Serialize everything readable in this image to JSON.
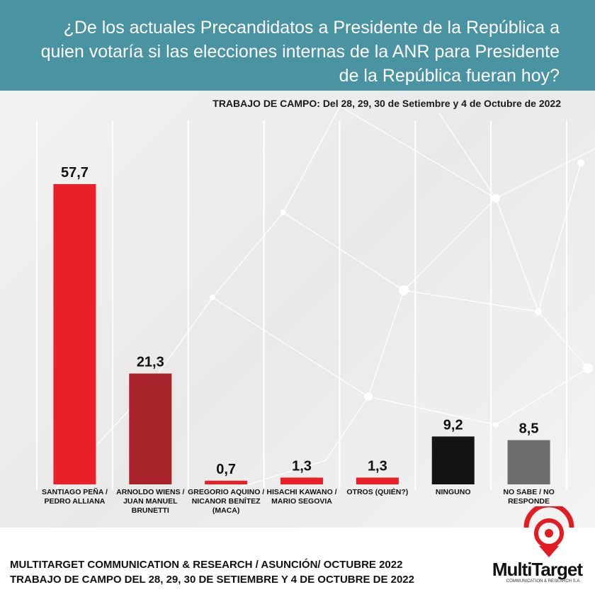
{
  "header": {
    "title": "¿De los actuales Precandidatos a Presidente de la República a quien votaría si las elecciones internas de la ANR para Presidente de la República fueran hoy?",
    "fieldwork": "TRABAJO DE CAMPO: Del 28, 29, 30  de Setiembre y 4  de Octubre  de  2022"
  },
  "colors": {
    "header_bg": "#4a93a2",
    "bars": [
      "#ea2029",
      "#a8222a",
      "#ea2029",
      "#ea2029",
      "#ea2029",
      "#141414",
      "#6d6d6d"
    ]
  },
  "chart_data": {
    "type": "bar",
    "title": "¿De los actuales Precandidatos a Presidente de la República a quien votaría si las elecciones internas de la ANR para Presidente de la República fueran hoy?",
    "xlabel": "",
    "ylabel": "",
    "ylim": [
      0,
      60
    ],
    "grid": false,
    "categories": [
      [
        "SANTIAGO PEÑA /",
        "PEDRO ALLIANA"
      ],
      [
        "ARNOLDO WIENS /",
        "JUAN MANUEL",
        "BRUNETTI"
      ],
      [
        "GREGORIO AQUINO /",
        "NICANOR BENÍTEZ",
        "(MACA)"
      ],
      [
        "HISACHI KAWANO /",
        "MARIO SEGOVIA"
      ],
      [
        "OTROS (QUIÉN?)"
      ],
      [
        "NINGUNO"
      ],
      [
        "NO SABE / NO",
        "RESPONDE"
      ]
    ],
    "values": [
      57.7,
      21.3,
      0.7,
      1.3,
      1.3,
      9.2,
      8.5
    ],
    "value_labels": [
      "57,7",
      "21,3",
      "0,7",
      "1,3",
      "1,3",
      "9,2",
      "8,5"
    ]
  },
  "footer": {
    "line1": "MULTITARGET COMMUNICATION & RESEARCH / ASUNCIÓN/ OCTUBRE 2022",
    "line2": "TRABAJO DE CAMPO DEL 28, 29, 30  DE SETIEMBRE Y 4  DE OCTUBRE  DE  2022"
  },
  "logo": {
    "name": "MultiTarget",
    "subtitle": "COMMUNICATION & RESEARCH S.A."
  }
}
